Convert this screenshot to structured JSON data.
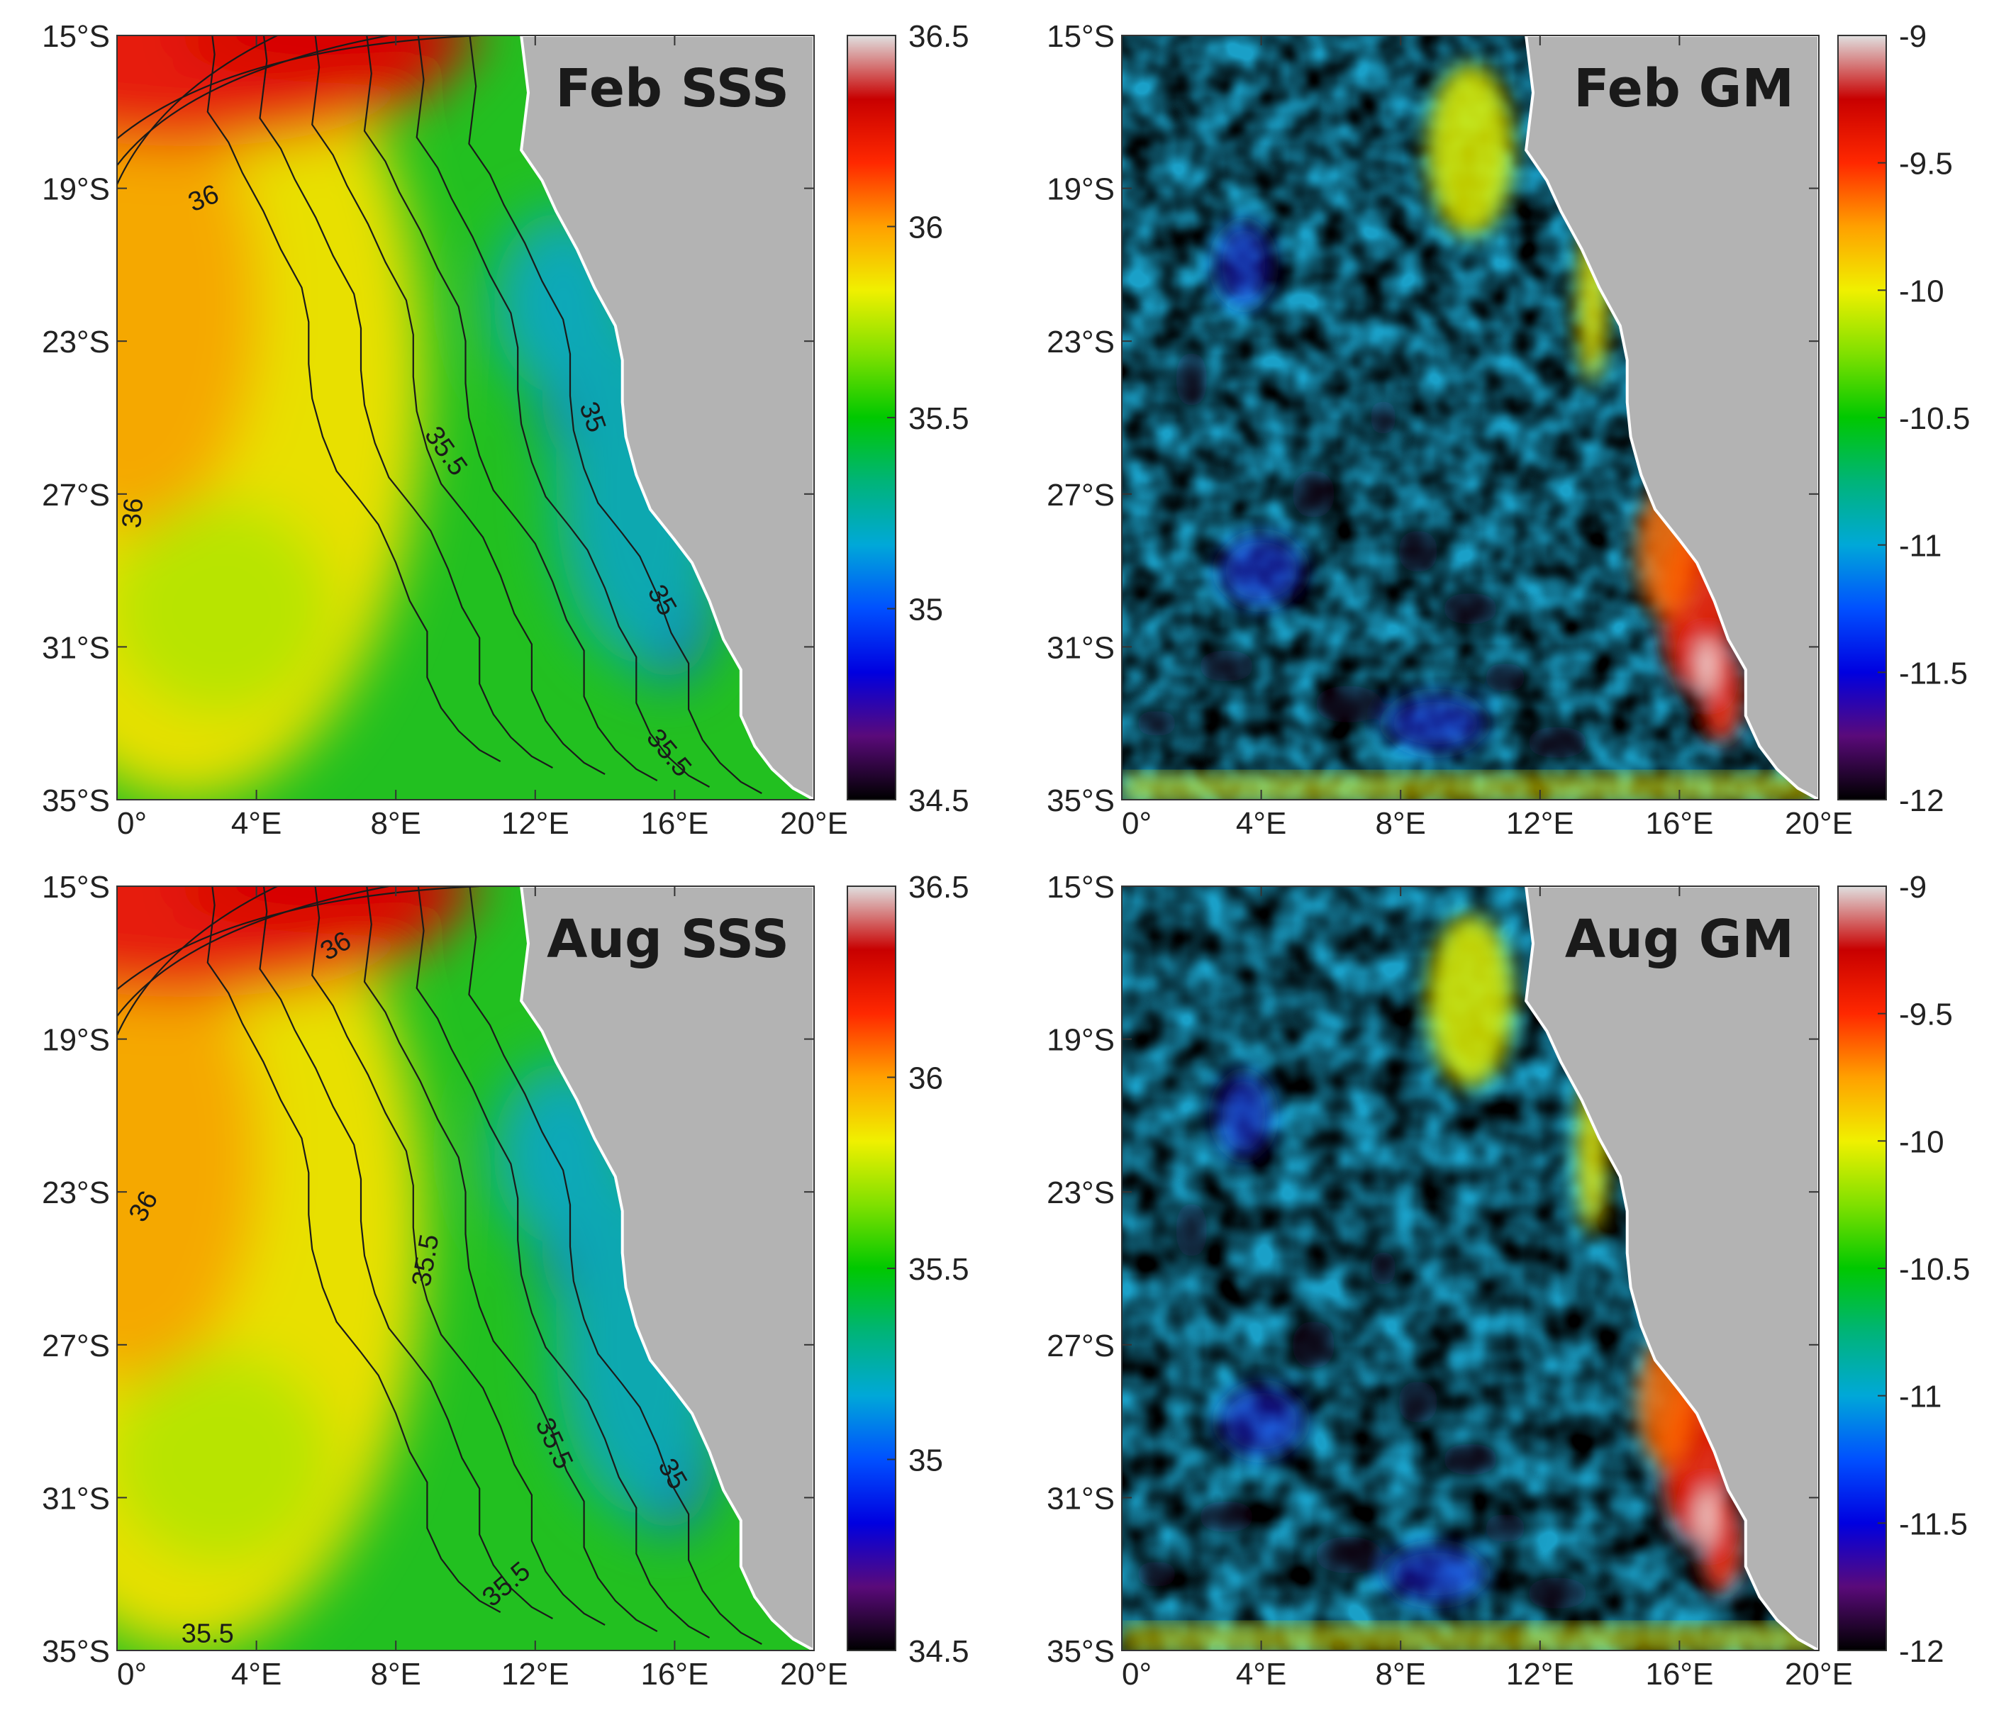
{
  "panels": [
    {
      "id": "feb-sss",
      "title": "Feb SSS",
      "kind": "sss",
      "x_ticks": [
        "0°",
        "4°E",
        "8°E",
        "12°E",
        "16°E",
        "20°E"
      ],
      "y_ticks": [
        "15°S",
        "19°S",
        "23°S",
        "27°S",
        "31°S",
        "35°S"
      ],
      "colorbar": {
        "ticks": [
          "36.5",
          "36",
          "35.5",
          "35",
          "34.5"
        ],
        "min": 34.5,
        "max": 36.5
      },
      "contour_labels": [
        {
          "text": "36",
          "lon": 2.5,
          "lat": -19.3,
          "rot": -22
        },
        {
          "text": "35.5",
          "lon": 9.4,
          "lat": -25.9,
          "rot": 55
        },
        {
          "text": "35",
          "lon": 13.6,
          "lat": -25.0,
          "rot": 70
        },
        {
          "text": "36",
          "lon": 0.5,
          "lat": -27.5,
          "rot": -85
        },
        {
          "text": "35",
          "lon": 15.6,
          "lat": -29.8,
          "rot": 60
        },
        {
          "text": "35.5",
          "lon": 15.8,
          "lat": -33.8,
          "rot": 50
        }
      ]
    },
    {
      "id": "feb-gm",
      "title": "Feb GM",
      "kind": "gm",
      "x_ticks": [
        "0°",
        "4°E",
        "8°E",
        "12°E",
        "16°E",
        "20°E"
      ],
      "y_ticks": [
        "15°S",
        "19°S",
        "23°S",
        "27°S",
        "31°S",
        "35°S"
      ],
      "colorbar": {
        "ticks": [
          "-9",
          "-9.5",
          "-10",
          "-10.5",
          "-11",
          "-11.5",
          "-12"
        ],
        "min": -12,
        "max": -9
      },
      "contour_labels": []
    },
    {
      "id": "aug-sss",
      "title": "Aug SSS",
      "kind": "sss",
      "x_ticks": [
        "0°",
        "4°E",
        "8°E",
        "12°E",
        "16°E",
        "20°E"
      ],
      "y_ticks": [
        "15°S",
        "19°S",
        "23°S",
        "27°S",
        "31°S",
        "35°S"
      ],
      "colorbar": {
        "ticks": [
          "36.5",
          "36",
          "35.5",
          "35",
          "34.5"
        ],
        "min": 34.5,
        "max": 36.5
      },
      "contour_labels": [
        {
          "text": "36",
          "lon": 6.3,
          "lat": -16.6,
          "rot": -30
        },
        {
          "text": "36",
          "lon": 0.8,
          "lat": -23.4,
          "rot": -60
        },
        {
          "text": "35.5",
          "lon": 8.9,
          "lat": -24.8,
          "rot": -80
        },
        {
          "text": "35.5",
          "lon": 12.5,
          "lat": -29.6,
          "rot": 65
        },
        {
          "text": "35",
          "lon": 15.9,
          "lat": -30.4,
          "rot": 60
        },
        {
          "text": "35.5",
          "lon": 11.2,
          "lat": -33.3,
          "rot": -40
        },
        {
          "text": "35.5",
          "lon": 2.6,
          "lat": -34.6,
          "rot": 0
        }
      ]
    },
    {
      "id": "aug-gm",
      "title": "Aug GM",
      "kind": "gm",
      "x_ticks": [
        "0°",
        "4°E",
        "8°E",
        "12°E",
        "16°E",
        "20°E"
      ],
      "y_ticks": [
        "15°S",
        "19°S",
        "23°S",
        "27°S",
        "31°S",
        "35°S"
      ],
      "colorbar": {
        "ticks": [
          "-9",
          "-9.5",
          "-10",
          "-10.5",
          "-11",
          "-11.5",
          "-12"
        ],
        "min": -12,
        "max": -9
      },
      "contour_labels": []
    }
  ],
  "colors": {
    "land": "#b3b3b3",
    "colormap": [
      "#000000",
      "#5a0a7a",
      "#0000e0",
      "#0050ff",
      "#00a8d8",
      "#00b478",
      "#00c800",
      "#80e000",
      "#f0f000",
      "#ffa000",
      "#ff2800",
      "#c80000",
      "#e0e0e0"
    ]
  }
}
